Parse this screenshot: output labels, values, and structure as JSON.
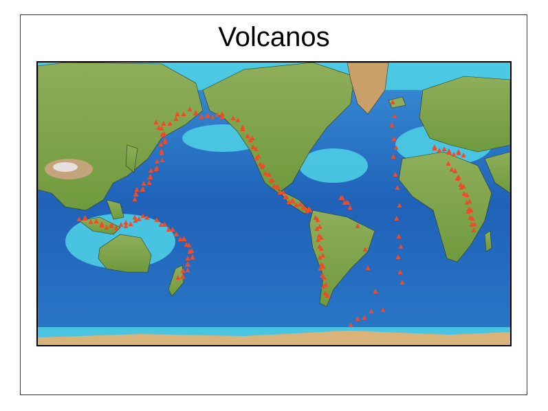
{
  "title": "Volcanos",
  "colors": {
    "ocean_deep": "#1e5fb4",
    "ocean_shallow": "#4fd6ea",
    "land": "#7fa84a",
    "land_high": "#b89a5c",
    "ice": "#e8e8e8",
    "volcano": "#f04a26"
  },
  "marker_icon": "volcano-triangle-icon"
}
